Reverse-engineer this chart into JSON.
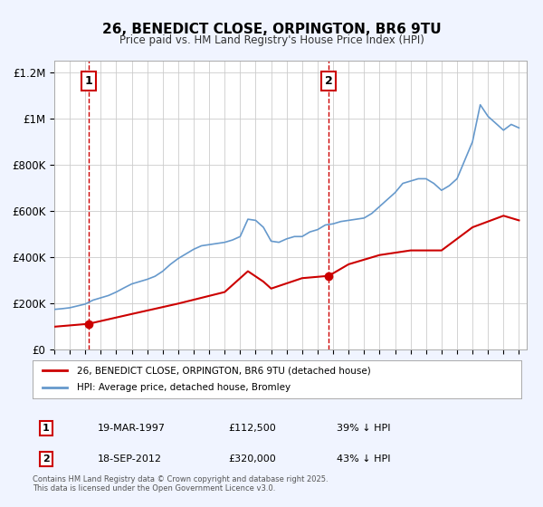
{
  "title": "26, BENEDICT CLOSE, ORPINGTON, BR6 9TU",
  "subtitle": "Price paid vs. HM Land Registry's House Price Index (HPI)",
  "background_color": "#f0f4ff",
  "plot_bg_color": "#ffffff",
  "grid_color": "#cccccc",
  "hpi_color": "#6699cc",
  "price_color": "#cc0000",
  "sale1_date": 1997.21,
  "sale1_price": 112500,
  "sale1_label": "1",
  "sale2_date": 2012.72,
  "sale2_price": 320000,
  "sale2_label": "2",
  "xlabel": "",
  "ylabel": "",
  "ylim": [
    0,
    1250000
  ],
  "xlim": [
    1995,
    2025.5
  ],
  "legend_label_price": "26, BENEDICT CLOSE, ORPINGTON, BR6 9TU (detached house)",
  "legend_label_hpi": "HPI: Average price, detached house, Bromley",
  "annotation1_date": "19-MAR-1997",
  "annotation1_price": "£112,500",
  "annotation1_hpi": "39% ↓ HPI",
  "annotation2_date": "18-SEP-2012",
  "annotation2_price": "£320,000",
  "annotation2_hpi": "43% ↓ HPI",
  "footer": "Contains HM Land Registry data © Crown copyright and database right 2025.\nThis data is licensed under the Open Government Licence v3.0.",
  "yticks": [
    0,
    200000,
    400000,
    600000,
    800000,
    1000000,
    1200000
  ],
  "ytick_labels": [
    "£0",
    "£200K",
    "£400K",
    "£600K",
    "£800K",
    "£1M",
    "£1.2M"
  ],
  "xticks": [
    1995,
    1996,
    1997,
    1998,
    1999,
    2000,
    2001,
    2002,
    2003,
    2004,
    2005,
    2006,
    2007,
    2008,
    2009,
    2010,
    2011,
    2012,
    2013,
    2014,
    2015,
    2016,
    2017,
    2018,
    2019,
    2020,
    2021,
    2022,
    2023,
    2024,
    2025
  ]
}
